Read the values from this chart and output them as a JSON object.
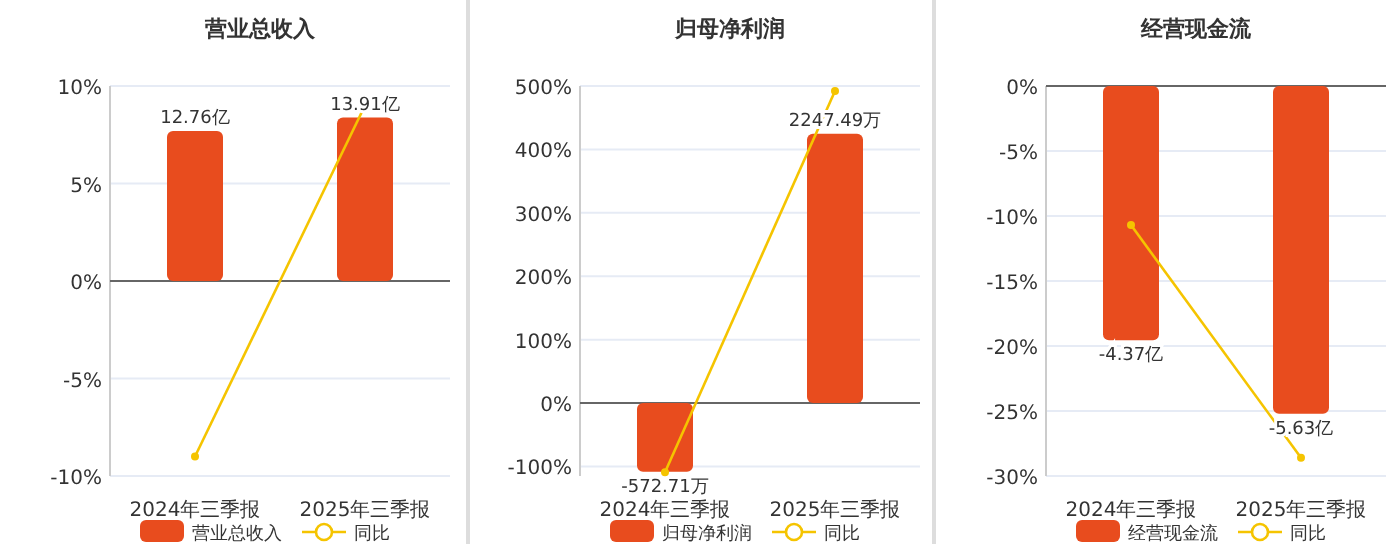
{
  "chart_data": [
    {
      "type": "bar",
      "title": "营业总收入",
      "categories": [
        "2024年三季报",
        "2025年三季报"
      ],
      "series": [
        {
          "name": "营业总收入",
          "color": "#e84c1e",
          "axis": "y2",
          "values": [
            12.76,
            13.91
          ],
          "value_labels": [
            "12.76亿",
            "13.91亿"
          ]
        },
        {
          "name": "同比",
          "type": "line",
          "color": "#f5c400",
          "values": [
            -9.0,
            9.0
          ]
        }
      ],
      "ylim": [
        -10,
        10
      ],
      "yticks": [
        {
          "value": -10,
          "label": "-10%"
        },
        {
          "value": -5,
          "label": "-5%"
        },
        {
          "value": 0,
          "label": "0%"
        },
        {
          "value": 5,
          "label": "5%"
        },
        {
          "value": 10,
          "label": "10%"
        }
      ],
      "y2lim": [
        -16.6,
        16.6
      ],
      "grid": "y",
      "legend": "bottom",
      "marker": "circle"
    },
    {
      "type": "bar",
      "title": "归母净利润",
      "categories": [
        "2024年三季报",
        "2025年三季报"
      ],
      "series": [
        {
          "name": "归母净利润",
          "color": "#e84c1e",
          "axis": "y2",
          "values": [
            -572.71,
            2247.49
          ],
          "value_labels": [
            "-572.71万",
            "2247.49万"
          ]
        },
        {
          "name": "同比",
          "type": "line",
          "color": "#f5c400",
          "values": [
            -109,
            492
          ]
        }
      ],
      "ylim": [
        -115,
        500
      ],
      "yticks": [
        {
          "value": -100,
          "label": "-100%"
        },
        {
          "value": 0,
          "label": "0%"
        },
        {
          "value": 100,
          "label": "100%"
        },
        {
          "value": 200,
          "label": "200%"
        },
        {
          "value": 300,
          "label": "300%"
        },
        {
          "value": 400,
          "label": "400%"
        },
        {
          "value": 500,
          "label": "500%"
        }
      ],
      "y2lim": [
        -608,
        2645
      ],
      "grid": "y",
      "legend": "bottom",
      "marker": "circle"
    },
    {
      "type": "bar",
      "title": "经营现金流",
      "categories": [
        "2024年三季报",
        "2025年三季报"
      ],
      "series": [
        {
          "name": "经营现金流",
          "color": "#e84c1e",
          "axis": "y2",
          "values": [
            -4.37,
            -5.63
          ],
          "value_labels": [
            "-4.37亿",
            "-5.63亿"
          ]
        },
        {
          "name": "同比",
          "type": "line",
          "color": "#f5c400",
          "values": [
            -10.7,
            -28.6
          ]
        }
      ],
      "ylim": [
        -30,
        0
      ],
      "yticks": [
        {
          "value": -30,
          "label": "-30%"
        },
        {
          "value": -25,
          "label": "-25%"
        },
        {
          "value": -20,
          "label": "-20%"
        },
        {
          "value": -15,
          "label": "-15%"
        },
        {
          "value": -10,
          "label": "-10%"
        },
        {
          "value": -5,
          "label": "-5%"
        },
        {
          "value": 0,
          "label": "0%"
        }
      ],
      "y2lim": [
        -6.7,
        0
      ],
      "grid": "y",
      "legend": "bottom",
      "marker": "circle"
    }
  ]
}
